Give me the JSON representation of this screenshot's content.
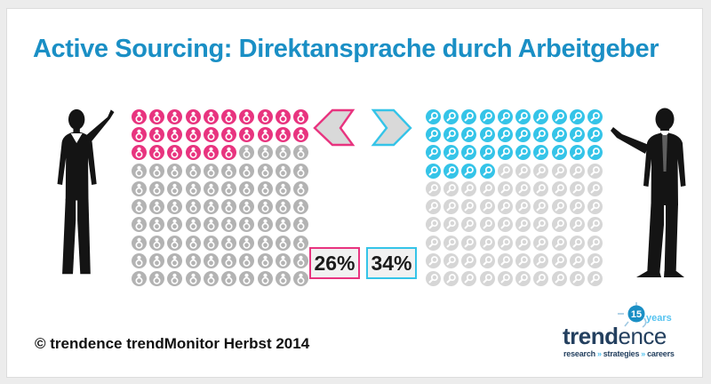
{
  "page": {
    "title": "Active Sourcing: Direktansprache durch Arbeitgeber",
    "footer_copyright": "© trendence trendMonitor Herbst 2014"
  },
  "colors": {
    "title_blue": "#1a8fc5",
    "pink": "#e8347f",
    "cyan": "#35c4e8",
    "empty_gray_left": "#b3b3b3",
    "empty_gray_right": "#d6d6d6",
    "chevron_fill": "#d9d9d9",
    "logo_navy": "#24405f",
    "logo_lightblue": "#55c3f0",
    "box_text": "#1a1a1a"
  },
  "chart_data": {
    "type": "pictogram",
    "title": "Active Sourcing: Direktansprache durch Arbeitgeber",
    "grid": {
      "columns": 10,
      "rows": 10,
      "icon_value_pct": 1
    },
    "legend_position": "center-bottom-boxes",
    "series": [
      {
        "name": "left-group",
        "icon": "person-icon",
        "color": "#e8347f",
        "empty_color": "#b3b3b3",
        "value_pct": 26,
        "filled_icons": 26,
        "total_icons": 100,
        "label": "26%"
      },
      {
        "name": "right-group",
        "icon": "magnifier-icon",
        "color": "#35c4e8",
        "empty_color": "#d6d6d6",
        "value_pct": 34,
        "filled_icons": 34,
        "total_icons": 100,
        "label": "34%"
      }
    ]
  },
  "labels": {
    "left_pct": "26%",
    "right_pct": "34%"
  },
  "logo": {
    "badge_number": "15",
    "badge_caption": "years",
    "brand_bold": "trend",
    "brand_light": "ence",
    "tagline_words": [
      "research",
      "strategies",
      "careers"
    ],
    "tagline_separator": "»"
  }
}
